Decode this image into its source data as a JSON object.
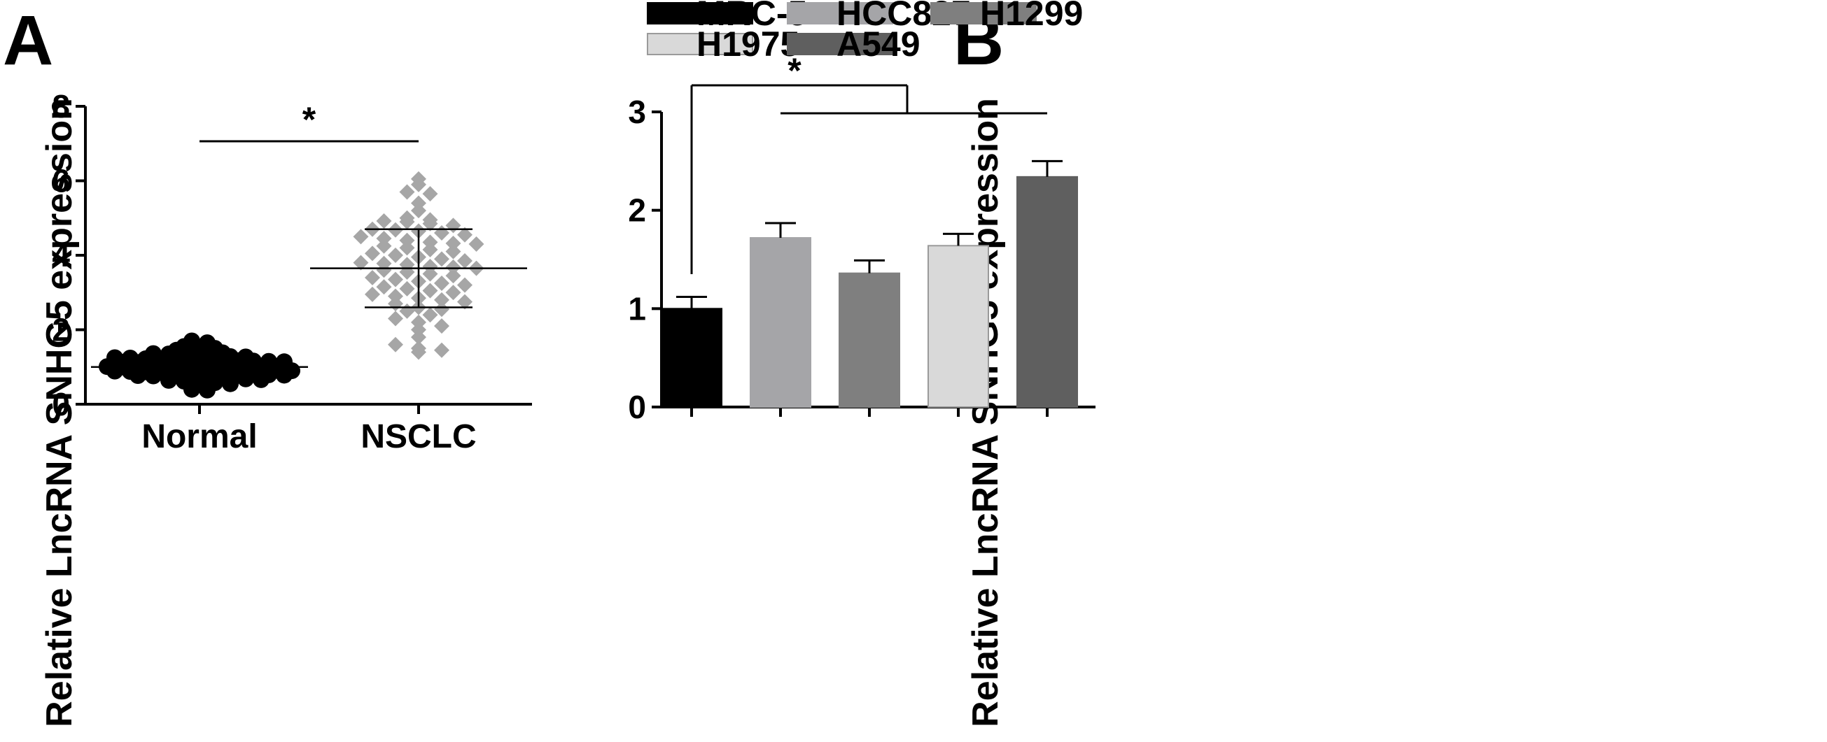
{
  "panels": {
    "a": {
      "label": "A"
    },
    "b": {
      "label": "B"
    }
  },
  "chart_data": [
    {
      "type": "scatter",
      "ylabel": "Relative LncRNA SNHG5 expression",
      "xlabel": "",
      "ylim": [
        0,
        8
      ],
      "yticks": [
        "0",
        "2",
        "4",
        "6",
        "8"
      ],
      "categories": [
        "Normal",
        "NSCLC"
      ],
      "significance": {
        "between": [
          "Normal",
          "NSCLC"
        ],
        "symbol": "*"
      },
      "series": [
        {
          "name": "Normal",
          "marker": "circle",
          "color": "#000000",
          "mean": 1.0,
          "sd_low": 0.75,
          "sd_high": 1.25,
          "values": [
            1.7,
            1.65,
            1.55,
            1.5,
            1.5,
            1.45,
            1.42,
            1.4,
            1.38,
            1.36,
            1.35,
            1.33,
            1.3,
            1.3,
            1.28,
            1.27,
            1.25,
            1.24,
            1.22,
            1.21,
            1.2,
            1.2,
            1.19,
            1.18,
            1.17,
            1.16,
            1.15,
            1.14,
            1.13,
            1.12,
            1.1,
            1.09,
            1.08,
            1.07,
            1.06,
            1.05,
            1.04,
            1.03,
            1.02,
            1.01,
            1.0,
            1.0,
            0.99,
            0.98,
            0.97,
            0.96,
            0.95,
            0.94,
            0.93,
            0.92,
            0.91,
            0.9,
            0.89,
            0.88,
            0.87,
            0.86,
            0.85,
            0.84,
            0.83,
            0.82,
            0.81,
            0.8,
            0.79,
            0.78,
            0.77,
            0.76,
            0.75,
            0.74,
            0.73,
            0.72,
            0.7,
            0.68,
            0.66,
            0.64,
            0.62,
            0.6,
            0.58,
            0.55,
            0.5,
            0.45,
            0.4,
            0.38
          ]
        },
        {
          "name": "NSCLC",
          "marker": "diamond",
          "color": "#a6a6a6",
          "mean": 3.65,
          "sd_low": 2.6,
          "sd_high": 4.7,
          "values": [
            6.05,
            5.9,
            5.7,
            5.65,
            5.4,
            5.2,
            5.0,
            4.95,
            4.92,
            4.9,
            4.85,
            4.8,
            4.7,
            4.68,
            4.65,
            4.6,
            4.55,
            4.5,
            4.45,
            4.4,
            4.35,
            4.32,
            4.3,
            4.25,
            4.2,
            4.15,
            4.1,
            4.05,
            4.0,
            3.95,
            3.9,
            3.85,
            3.8,
            3.78,
            3.75,
            3.7,
            3.68,
            3.65,
            3.6,
            3.55,
            3.5,
            3.45,
            3.4,
            3.35,
            3.3,
            3.25,
            3.2,
            3.15,
            3.1,
            3.05,
            3.0,
            2.95,
            2.9,
            2.85,
            2.8,
            2.75,
            2.7,
            2.6,
            2.55,
            2.5,
            2.4,
            2.3,
            2.2,
            2.1,
            2.0,
            1.8,
            1.6,
            1.5,
            1.45,
            1.4
          ]
        }
      ]
    },
    {
      "type": "bar",
      "ylabel": "Relative LncRNA SNHG5 expression",
      "xlabel": "",
      "ylim": [
        0,
        3
      ],
      "yticks": [
        "0",
        "1",
        "2",
        "3"
      ],
      "legend": "top",
      "categories": [
        "MRC-5",
        "HCC827",
        "H1299",
        "H1975",
        "A549"
      ],
      "values": [
        1.0,
        1.72,
        1.36,
        1.64,
        2.34
      ],
      "errors": [
        0.12,
        0.15,
        0.13,
        0.12,
        0.16
      ],
      "colors": [
        "#000000",
        "#a5a5a8",
        "#7f7f7f",
        "#d9d9d9",
        "#5f5f5f"
      ],
      "significance": {
        "between": [
          "MRC-5",
          "HCC827 / H1299 / H1975 / A549"
        ],
        "symbol": "*"
      }
    }
  ]
}
